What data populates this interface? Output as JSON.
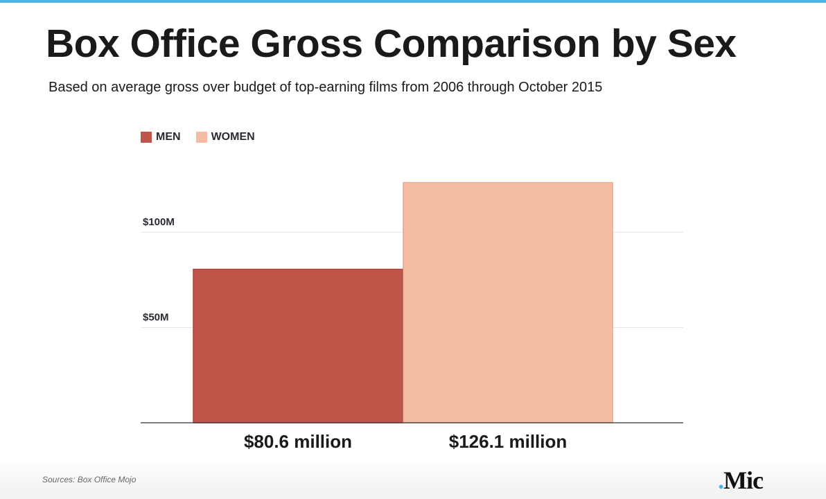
{
  "colors": {
    "accent": "#4ab3e8",
    "men": "#c0554a",
    "women": "#f3bca3"
  },
  "chart_data": {
    "type": "bar",
    "title": "Box Office Gross Comparison by Sex",
    "subtitle": "Based on average gross over budget of top-earning films from 2006 through October 2015",
    "categories": [
      "MEN",
      "WOMEN"
    ],
    "values": [
      80.6,
      126.1
    ],
    "data_labels": [
      "$80.6 million",
      "$126.1 million"
    ],
    "yticks": [
      {
        "value": 50,
        "label": "$50M"
      },
      {
        "value": 100,
        "label": "$100M"
      }
    ],
    "ylim": [
      0,
      135
    ],
    "grid": true,
    "legend": {
      "placement": "top-left",
      "entries": [
        "MEN",
        "WOMEN"
      ]
    },
    "source": "Sources: Box Office Mojo"
  },
  "logo": {
    "dot": ".",
    "text": "Mic"
  }
}
